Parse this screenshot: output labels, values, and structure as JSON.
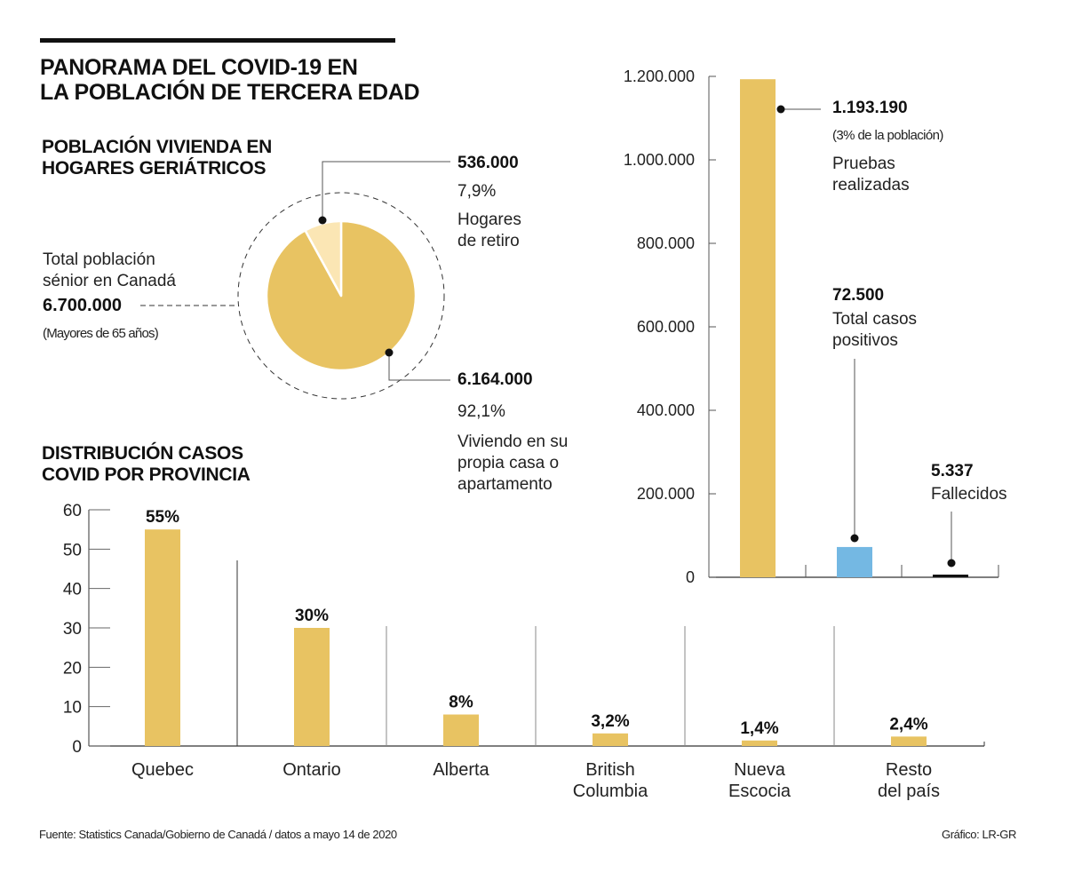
{
  "header": {
    "title_line1": "PANORAMA DEL COVID-19 EN",
    "title_line2": "LA POBLACIÓN DE TERCERA EDAD"
  },
  "pie_section": {
    "title_line1": "POBLACIÓN VIVIENDA EN",
    "title_line2": "HOGARES GERIÁTRICOS",
    "total_label_line1": "Total población",
    "total_label_line2": "sénior en Canadá",
    "total_value": "6.700.000",
    "total_note": "(Mayores de 65 años)",
    "retiro_value": "536.000",
    "retiro_pct": "7,9%",
    "retiro_label_line1": "Hogares",
    "retiro_label_line2": "de retiro",
    "propia_value": "6.164.000",
    "propia_pct": "92,1%",
    "propia_label_line1": "Viviendo en su",
    "propia_label_line2": "propia casa o",
    "propia_label_line3": "apartamento"
  },
  "tests_section": {
    "tests_value": "1.193.190",
    "tests_note": "(3% de la población)",
    "tests_label_line1": "Pruebas",
    "tests_label_line2": "realizadas",
    "positive_value": "72.500",
    "positive_label_line1": "Total casos",
    "positive_label_line2": "positivos",
    "deaths_value": "5.337",
    "deaths_label": "Fallecidos"
  },
  "province_section": {
    "title_line1": "DISTRIBUCIÓN CASOS",
    "title_line2": "COVID POR PROVINCIA"
  },
  "footer": {
    "source": "Fuente: Statistics Canada/Gobierno de Canadá / datos a mayo 14 de 2020",
    "credit": "Gráfico: LR-GR"
  },
  "colors": {
    "gold": "#e8c362",
    "gold_light": "#fbe6b4",
    "blue": "#74b8e3",
    "black": "#111111"
  },
  "chart_data": [
    {
      "type": "pie",
      "title": "Población viviendo en hogares geriátricos",
      "total": 6700000,
      "slices": [
        {
          "label": "Hogares de retiro",
          "value": 536000,
          "percent": 7.9
        },
        {
          "label": "Viviendo en su propia casa o apartamento",
          "value": 6164000,
          "percent": 92.1
        }
      ]
    },
    {
      "type": "bar",
      "title": "Pruebas, casos y fallecidos",
      "categories": [
        "Pruebas realizadas",
        "Total casos positivos",
        "Fallecidos"
      ],
      "values": [
        1193190,
        72500,
        5337
      ],
      "ylim": [
        0,
        1200000
      ],
      "yticks": [
        0,
        200000,
        400000,
        600000,
        800000,
        1000000,
        1200000
      ],
      "ytick_labels": [
        "0",
        "200.000",
        "400.000",
        "600.000",
        "800.000",
        "1.000.000",
        "1.200.000"
      ]
    },
    {
      "type": "bar",
      "title": "Distribución casos COVID por provincia",
      "categories": [
        "Quebec",
        "Ontario",
        "Alberta",
        "British Columbia",
        "Nueva Escocia",
        "Resto del país"
      ],
      "category_lines": [
        [
          "Quebec"
        ],
        [
          "Ontario"
        ],
        [
          "Alberta"
        ],
        [
          "British",
          "Columbia"
        ],
        [
          "Nueva",
          "Escocia"
        ],
        [
          "Resto",
          "del país"
        ]
      ],
      "values": [
        55,
        30,
        8,
        3.2,
        1.4,
        2.4
      ],
      "data_labels": [
        "55%",
        "30%",
        "8%",
        "3,2%",
        "1,4%",
        "2,4%"
      ],
      "ylim": [
        0,
        60
      ],
      "yticks": [
        0,
        10,
        20,
        30,
        40,
        50,
        60
      ]
    }
  ]
}
